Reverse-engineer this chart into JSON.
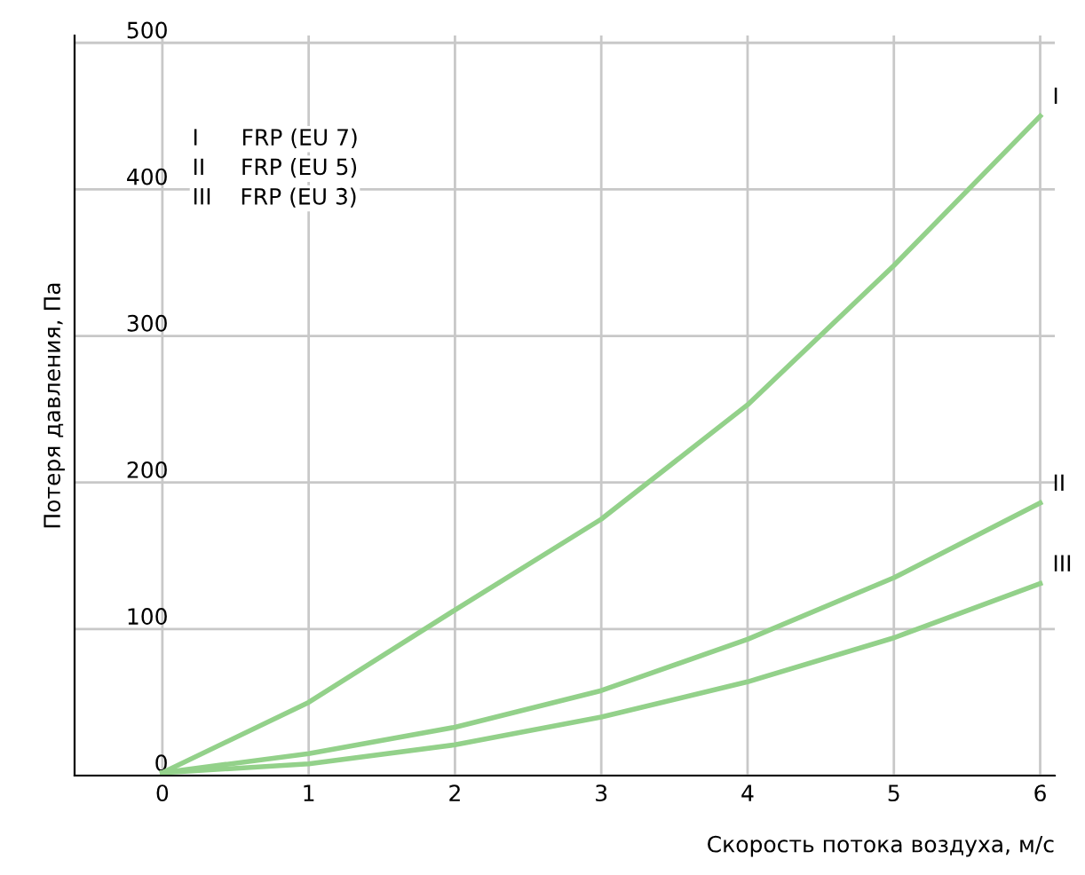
{
  "chart_data": {
    "type": "line",
    "xlabel": "Скорость потока воздуха, м/с",
    "ylabel": "Потеря давления, Па",
    "x": [
      0,
      1,
      2,
      3,
      4,
      5,
      6
    ],
    "series": [
      {
        "name": "I",
        "color": "#93d18a",
        "values": [
          2,
          50,
          113,
          175,
          253,
          348,
          450
        ]
      },
      {
        "name": "II",
        "color": "#93d18a",
        "values": [
          2,
          15,
          33,
          58,
          93,
          135,
          186
        ]
      },
      {
        "name": "III",
        "color": "#93d18a",
        "values": [
          2,
          8,
          21,
          40,
          64,
          94,
          131
        ]
      }
    ],
    "annotations": [
      "I      FRP (EU 7)",
      "II     FRP (EU 5)",
      "III    FRP (EU 3)"
    ],
    "xlim": [
      -0.6,
      6.1
    ],
    "ylim": [
      0,
      505
    ],
    "xticks": [
      0,
      1,
      2,
      3,
      4,
      5,
      6
    ],
    "yticks": [
      0,
      100,
      200,
      300,
      400,
      500
    ],
    "grid": true,
    "marker": "none",
    "line_style": "solid",
    "legend": false
  }
}
